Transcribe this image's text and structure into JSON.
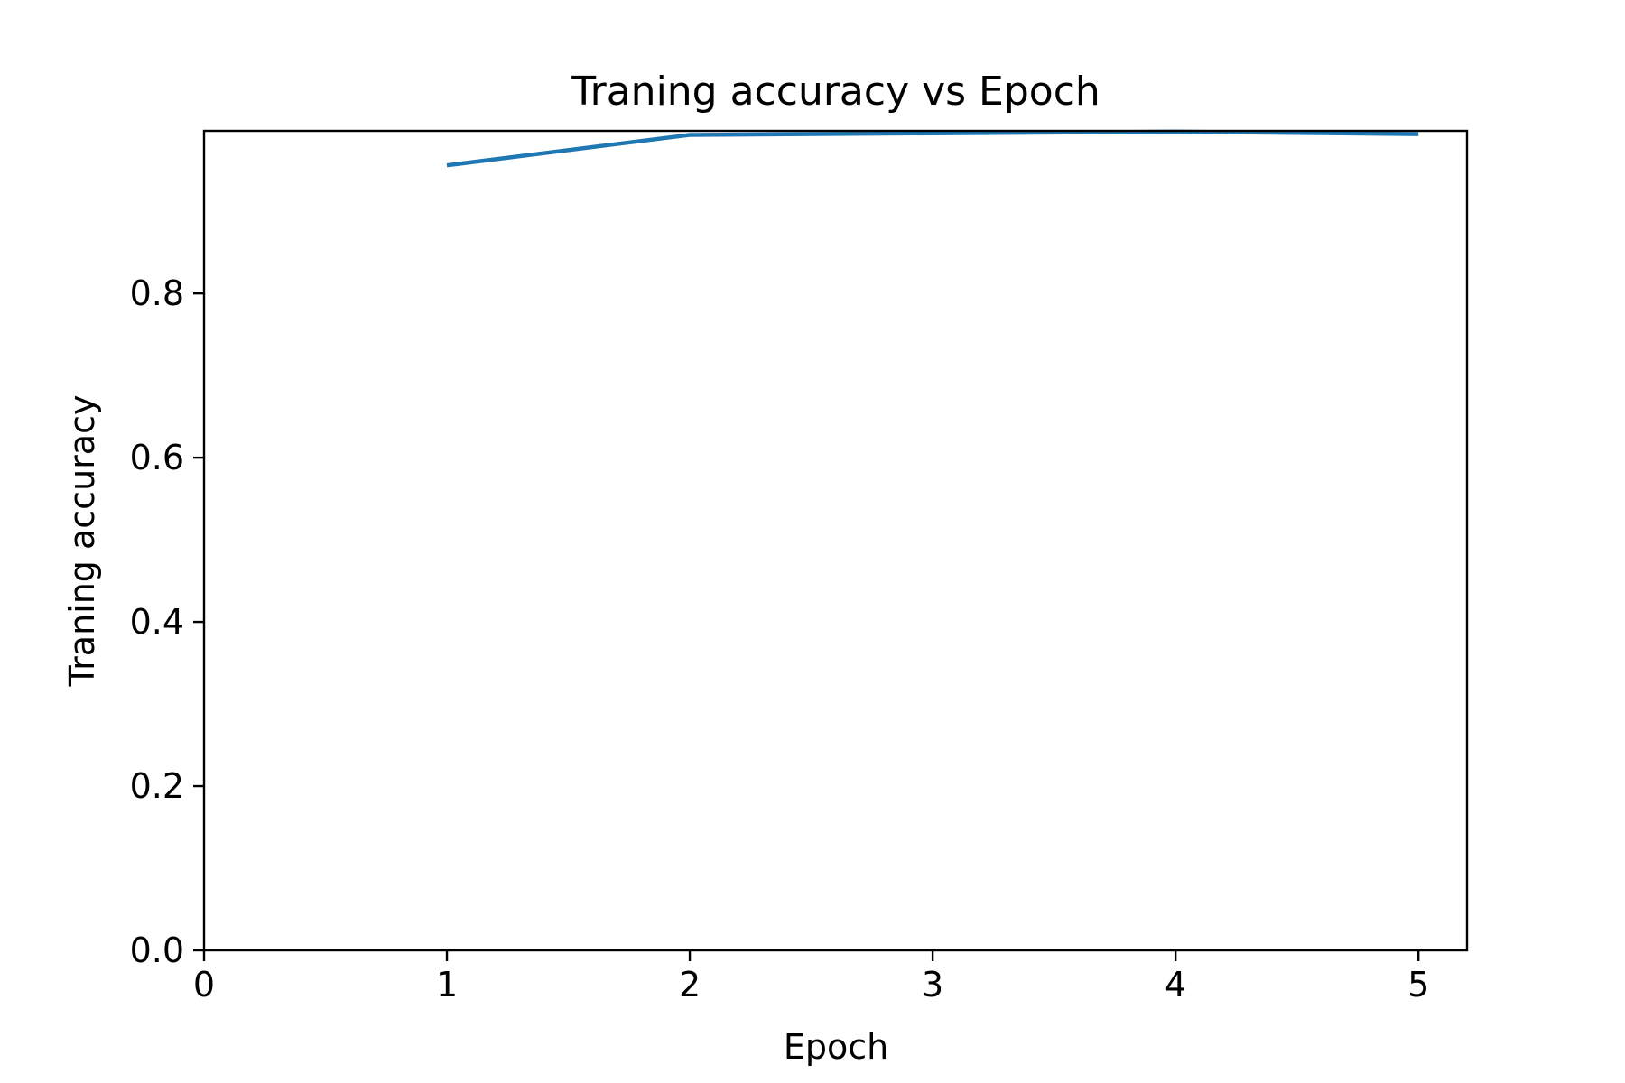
{
  "chart_data": {
    "type": "line",
    "title": "Traning accuracy vs Epoch",
    "xlabel": "Epoch",
    "ylabel": "Traning accuracy",
    "xlim": [
      0,
      5.2
    ],
    "ylim": [
      0,
      0.998
    ],
    "xticks": [
      0,
      1,
      2,
      3,
      4,
      5
    ],
    "xtick_labels": [
      "0",
      "1",
      "2",
      "3",
      "4",
      "5"
    ],
    "yticks": [
      0.0,
      0.2,
      0.4,
      0.6,
      0.8
    ],
    "ytick_labels": [
      "0.0",
      "0.2",
      "0.4",
      "0.6",
      "0.8"
    ],
    "grid": false,
    "series": [
      {
        "color": "#1f77b4",
        "x": [
          1,
          2,
          3,
          4,
          5
        ],
        "y": [
          0.956,
          0.993,
          0.995,
          0.997,
          0.994
        ]
      }
    ]
  }
}
